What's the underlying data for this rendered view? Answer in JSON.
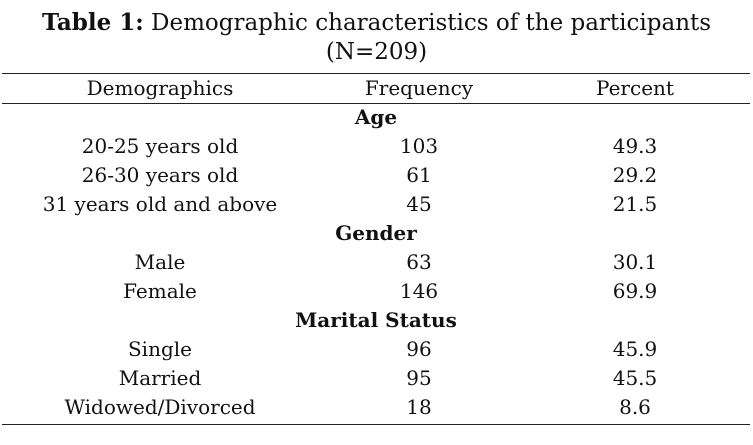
{
  "caption": {
    "label": "Table 1:",
    "text": "Demographic characteristics of the participants",
    "line2": "(N=209)"
  },
  "table": {
    "headers": [
      "Demographics",
      "Frequency",
      "Percent"
    ],
    "sections": [
      {
        "title": "Age",
        "rows": [
          [
            "20-25 years old",
            "103",
            "49.3"
          ],
          [
            "26-30 years old",
            "61",
            "29.2"
          ],
          [
            "31 years old and above",
            "45",
            "21.5"
          ]
        ]
      },
      {
        "title": "Gender",
        "rows": [
          [
            "Male",
            "63",
            "30.1"
          ],
          [
            "Female",
            "146",
            "69.9"
          ]
        ]
      },
      {
        "title": "Marital Status",
        "rows": [
          [
            "Single",
            "96",
            "45.9"
          ],
          [
            "Married",
            "95",
            "45.5"
          ],
          [
            "Widowed/Divorced",
            "18",
            "8.6"
          ]
        ]
      }
    ]
  }
}
